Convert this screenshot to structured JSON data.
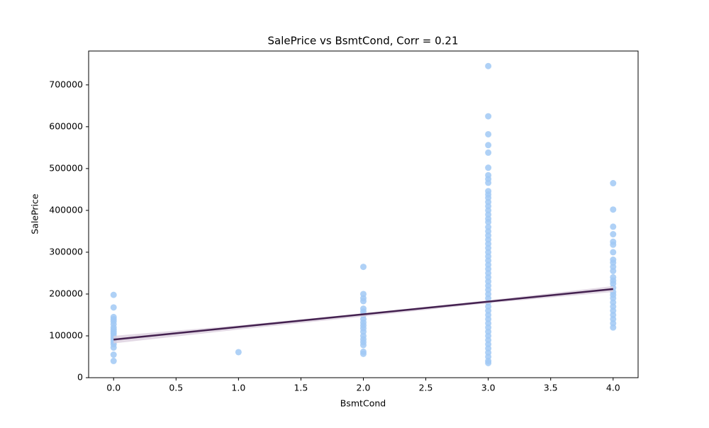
{
  "chart_data": {
    "type": "scatter",
    "title": "SalePrice vs BsmtCond, Corr = 0.21",
    "x_label": "BsmtCond",
    "y_label": "SalePrice",
    "x": [
      0,
      0,
      0,
      0,
      0,
      0,
      0,
      0,
      0,
      0,
      0,
      0,
      0,
      0,
      0,
      0,
      0,
      0,
      1,
      2,
      2,
      2,
      2,
      2,
      2,
      2,
      2,
      2,
      2,
      2,
      2,
      2,
      2,
      2,
      2,
      2,
      2,
      3,
      3,
      3,
      3,
      3,
      3,
      3,
      3,
      3,
      3,
      3,
      3,
      3,
      3,
      3,
      3,
      3,
      3,
      3,
      3,
      3,
      3,
      3,
      3,
      3,
      3,
      3,
      3,
      3,
      3,
      3,
      3,
      3,
      3,
      3,
      3,
      3,
      3,
      3,
      3,
      3,
      3,
      3,
      3,
      3,
      3,
      3,
      3,
      3,
      3,
      3,
      3,
      4,
      4,
      4,
      4,
      4,
      4,
      4,
      4,
      4,
      4,
      4,
      4,
      4,
      4,
      4,
      4,
      4,
      4,
      4,
      4,
      4,
      4,
      4,
      4,
      4
    ],
    "y": [
      198000,
      168000,
      145000,
      140000,
      135000,
      128000,
      120000,
      115000,
      110000,
      105000,
      100000,
      95000,
      90000,
      85000,
      80000,
      72000,
      55000,
      40000,
      61000,
      265000,
      200000,
      190000,
      183000,
      165000,
      158000,
      150000,
      140000,
      132000,
      125000,
      118000,
      110000,
      100000,
      92000,
      85000,
      78000,
      62000,
      57000,
      745000,
      625000,
      582000,
      556000,
      538000,
      502000,
      484000,
      475000,
      466000,
      446000,
      438000,
      430000,
      420000,
      410000,
      400000,
      390000,
      380000,
      372000,
      360000,
      350000,
      340000,
      330000,
      320000,
      310000,
      300000,
      290000,
      280000,
      270000,
      260000,
      250000,
      240000,
      230000,
      220000,
      210000,
      200000,
      190000,
      180000,
      170000,
      160000,
      150000,
      140000,
      130000,
      120000,
      110000,
      100000,
      90000,
      80000,
      70000,
      60000,
      50000,
      40000,
      35000,
      465000,
      402000,
      361000,
      343000,
      325000,
      318000,
      300000,
      282000,
      275000,
      265000,
      255000,
      240000,
      232000,
      225000,
      215000,
      205000,
      198000,
      190000,
      180000,
      170000,
      160000,
      150000,
      140000,
      130000,
      120000
    ],
    "color": "#a1c9f4",
    "fit": {
      "x": [
        0,
        4
      ],
      "y": [
        91000,
        212000
      ],
      "color": "#43204f"
    },
    "band": {
      "x": [
        0,
        1,
        2,
        3,
        4
      ],
      "lower": [
        82000,
        115000,
        146000,
        178000,
        205000
      ],
      "upper": [
        100000,
        125000,
        154000,
        185000,
        219000
      ],
      "color": "#dccfdf"
    },
    "xlim": [
      -0.2,
      4.2
    ],
    "xticks": [
      {
        "value": 0,
        "label": "0.0"
      },
      0.5,
      {
        "value": 1,
        "label": "1.0"
      },
      1.5,
      {
        "value": 2,
        "label": "2.0"
      },
      2.5,
      {
        "value": 3,
        "label": "3.0"
      },
      3.5,
      {
        "value": 4,
        "label": "4.0"
      }
    ],
    "ylim": [
      0,
      781000
    ],
    "yticks": [
      0,
      100000,
      200000,
      300000,
      400000,
      500000,
      600000,
      700000
    ]
  }
}
